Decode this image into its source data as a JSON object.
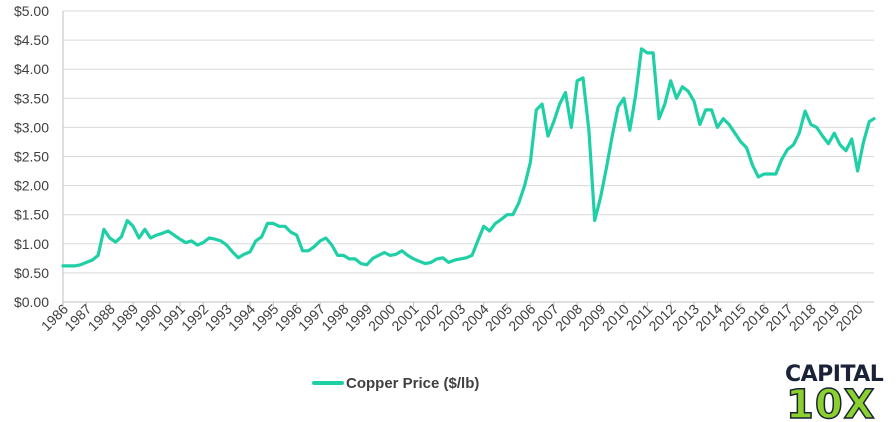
{
  "chart_data": {
    "type": "line",
    "title": "",
    "xlabel": "",
    "ylabel": "",
    "ylim": [
      0,
      5
    ],
    "grid": true,
    "legend_position": "bottom",
    "y_ticks": [
      "$0.00",
      "$0.50",
      "$1.00",
      "$1.50",
      "$2.00",
      "$2.50",
      "$3.00",
      "$3.50",
      "$4.00",
      "$4.50",
      "$5.00"
    ],
    "x_ticks": [
      "1986",
      "1987",
      "1988",
      "1989",
      "1990",
      "1991",
      "1992",
      "1993",
      "1994",
      "1995",
      "1996",
      "1997",
      "1998",
      "1999",
      "2000",
      "2001",
      "2002",
      "2003",
      "2004",
      "2005",
      "2006",
      "2007",
      "2008",
      "2009",
      "2010",
      "2011",
      "2012",
      "2013",
      "2014",
      "2015",
      "2016",
      "2017",
      "2018",
      "2019",
      "2020"
    ],
    "series": [
      {
        "name": "Copper Price ($/lb)",
        "color": "#1fcfa6",
        "points": [
          [
            1986.0,
            0.62
          ],
          [
            1986.25,
            0.62
          ],
          [
            1986.5,
            0.62
          ],
          [
            1986.75,
            0.64
          ],
          [
            1987.0,
            0.68
          ],
          [
            1987.25,
            0.72
          ],
          [
            1987.5,
            0.8
          ],
          [
            1987.75,
            1.25
          ],
          [
            1988.0,
            1.1
          ],
          [
            1988.25,
            1.03
          ],
          [
            1988.5,
            1.12
          ],
          [
            1988.75,
            1.4
          ],
          [
            1989.0,
            1.3
          ],
          [
            1989.25,
            1.1
          ],
          [
            1989.5,
            1.25
          ],
          [
            1989.75,
            1.1
          ],
          [
            1990.0,
            1.15
          ],
          [
            1990.25,
            1.18
          ],
          [
            1990.5,
            1.22
          ],
          [
            1990.75,
            1.15
          ],
          [
            1991.0,
            1.08
          ],
          [
            1991.25,
            1.02
          ],
          [
            1991.5,
            1.05
          ],
          [
            1991.75,
            0.98
          ],
          [
            1992.0,
            1.02
          ],
          [
            1992.25,
            1.1
          ],
          [
            1992.5,
            1.08
          ],
          [
            1992.75,
            1.05
          ],
          [
            1993.0,
            0.98
          ],
          [
            1993.25,
            0.86
          ],
          [
            1993.5,
            0.76
          ],
          [
            1993.75,
            0.82
          ],
          [
            1994.0,
            0.86
          ],
          [
            1994.25,
            1.05
          ],
          [
            1994.5,
            1.12
          ],
          [
            1994.75,
            1.35
          ],
          [
            1995.0,
            1.35
          ],
          [
            1995.25,
            1.3
          ],
          [
            1995.5,
            1.3
          ],
          [
            1995.75,
            1.2
          ],
          [
            1996.0,
            1.15
          ],
          [
            1996.25,
            0.88
          ],
          [
            1996.5,
            0.88
          ],
          [
            1996.75,
            0.95
          ],
          [
            1997.0,
            1.05
          ],
          [
            1997.25,
            1.1
          ],
          [
            1997.5,
            0.98
          ],
          [
            1997.75,
            0.8
          ],
          [
            1998.0,
            0.8
          ],
          [
            1998.25,
            0.74
          ],
          [
            1998.5,
            0.74
          ],
          [
            1998.75,
            0.66
          ],
          [
            1999.0,
            0.64
          ],
          [
            1999.25,
            0.75
          ],
          [
            1999.5,
            0.8
          ],
          [
            1999.75,
            0.85
          ],
          [
            2000.0,
            0.8
          ],
          [
            2000.25,
            0.82
          ],
          [
            2000.5,
            0.88
          ],
          [
            2000.75,
            0.8
          ],
          [
            2001.0,
            0.74
          ],
          [
            2001.25,
            0.7
          ],
          [
            2001.5,
            0.66
          ],
          [
            2001.75,
            0.68
          ],
          [
            2002.0,
            0.74
          ],
          [
            2002.25,
            0.76
          ],
          [
            2002.5,
            0.68
          ],
          [
            2002.75,
            0.72
          ],
          [
            2003.0,
            0.74
          ],
          [
            2003.25,
            0.76
          ],
          [
            2003.5,
            0.8
          ],
          [
            2003.75,
            1.05
          ],
          [
            2004.0,
            1.3
          ],
          [
            2004.25,
            1.22
          ],
          [
            2004.5,
            1.35
          ],
          [
            2004.75,
            1.42
          ],
          [
            2005.0,
            1.5
          ],
          [
            2005.25,
            1.5
          ],
          [
            2005.5,
            1.7
          ],
          [
            2005.75,
            2.0
          ],
          [
            2006.0,
            2.4
          ],
          [
            2006.25,
            3.3
          ],
          [
            2006.5,
            3.4
          ],
          [
            2006.75,
            2.85
          ],
          [
            2007.0,
            3.1
          ],
          [
            2007.25,
            3.4
          ],
          [
            2007.5,
            3.6
          ],
          [
            2007.75,
            3.0
          ],
          [
            2008.0,
            3.8
          ],
          [
            2008.25,
            3.85
          ],
          [
            2008.5,
            2.95
          ],
          [
            2008.75,
            1.4
          ],
          [
            2009.0,
            1.8
          ],
          [
            2009.25,
            2.3
          ],
          [
            2009.5,
            2.85
          ],
          [
            2009.75,
            3.35
          ],
          [
            2010.0,
            3.5
          ],
          [
            2010.25,
            2.95
          ],
          [
            2010.5,
            3.55
          ],
          [
            2010.75,
            4.35
          ],
          [
            2011.0,
            4.28
          ],
          [
            2011.25,
            4.28
          ],
          [
            2011.5,
            3.15
          ],
          [
            2011.75,
            3.4
          ],
          [
            2012.0,
            3.8
          ],
          [
            2012.25,
            3.5
          ],
          [
            2012.5,
            3.7
          ],
          [
            2012.75,
            3.62
          ],
          [
            2013.0,
            3.45
          ],
          [
            2013.25,
            3.05
          ],
          [
            2013.5,
            3.3
          ],
          [
            2013.75,
            3.3
          ],
          [
            2014.0,
            3.0
          ],
          [
            2014.25,
            3.15
          ],
          [
            2014.5,
            3.05
          ],
          [
            2014.75,
            2.9
          ],
          [
            2015.0,
            2.75
          ],
          [
            2015.25,
            2.65
          ],
          [
            2015.5,
            2.35
          ],
          [
            2015.75,
            2.15
          ],
          [
            2016.0,
            2.2
          ],
          [
            2016.25,
            2.2
          ],
          [
            2016.5,
            2.2
          ],
          [
            2016.75,
            2.45
          ],
          [
            2017.0,
            2.62
          ],
          [
            2017.25,
            2.7
          ],
          [
            2017.5,
            2.9
          ],
          [
            2017.75,
            3.28
          ],
          [
            2018.0,
            3.05
          ],
          [
            2018.25,
            3.0
          ],
          [
            2018.5,
            2.85
          ],
          [
            2018.75,
            2.72
          ],
          [
            2019.0,
            2.9
          ],
          [
            2019.25,
            2.7
          ],
          [
            2019.5,
            2.6
          ],
          [
            2019.75,
            2.8
          ],
          [
            2020.0,
            2.25
          ],
          [
            2020.25,
            2.75
          ],
          [
            2020.5,
            3.1
          ],
          [
            2020.7,
            3.15
          ]
        ]
      }
    ]
  },
  "logo": {
    "line1": "CAPITAL",
    "line2": "10X"
  }
}
